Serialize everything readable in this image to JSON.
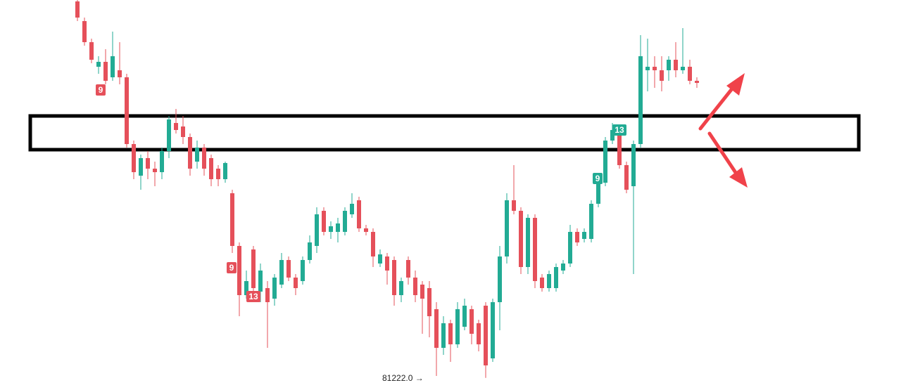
{
  "chart_data": {
    "type": "candlestick",
    "up_color": "#22ab94",
    "down_color": "#e5505a",
    "ylim": [
      81050,
      86600
    ],
    "open": [
      86580,
      86300,
      86000,
      85650,
      85720,
      85500,
      85600,
      85500,
      84550,
      84100,
      84350,
      84200,
      84150,
      84450,
      84850,
      84800,
      84650,
      84300,
      84500,
      84350,
      84200,
      84050,
      83850,
      83100,
      82400,
      83050,
      82450,
      82500,
      82350,
      82550,
      82900,
      82650,
      82600,
      82900,
      83100,
      83600,
      83300,
      83300,
      83300,
      83550,
      83750,
      83350,
      83300,
      82850,
      82950,
      82900,
      82400,
      82900,
      82650,
      82550,
      82500,
      82200,
      81650,
      82000,
      81700,
      81950,
      82200,
      82000,
      82250,
      81500,
      82300,
      82950,
      83750,
      83600,
      82800,
      83500,
      82650,
      82500,
      82500,
      82750,
      82850,
      83300,
      83200,
      83200,
      83700,
      84000,
      84600,
      84700,
      84250,
      83950,
      84550,
      85600,
      85650,
      85600,
      85600,
      85750,
      85600,
      85650,
      85450
    ],
    "high": [
      86600,
      86350,
      86050,
      85800,
      85900,
      86150,
      86000,
      85550,
      84600,
      84400,
      84450,
      84300,
      84500,
      84950,
      85050,
      84950,
      84700,
      84600,
      84550,
      84400,
      84250,
      84300,
      83900,
      83150,
      82750,
      83100,
      82850,
      82600,
      82700,
      83000,
      82950,
      82700,
      82950,
      83250,
      83650,
      83650,
      83450,
      83500,
      83650,
      83850,
      83800,
      83400,
      83350,
      83050,
      83000,
      82950,
      82650,
      82950,
      82750,
      82600,
      82600,
      82300,
      82100,
      82050,
      82300,
      82350,
      82250,
      82050,
      82300,
      82350,
      83100,
      83850,
      84250,
      83650,
      83550,
      83550,
      82700,
      82750,
      82850,
      82900,
      83400,
      83350,
      83350,
      83750,
      84100,
      84650,
      84850,
      84750,
      84300,
      84600,
      86100,
      86050,
      85800,
      85800,
      85800,
      86000,
      86200,
      85750,
      85500
    ],
    "low": [
      86300,
      85950,
      85700,
      85550,
      85400,
      85450,
      85400,
      84500,
      84050,
      83900,
      84050,
      83950,
      84050,
      84350,
      84700,
      84550,
      84100,
      84200,
      84100,
      83950,
      83950,
      84000,
      83000,
      82100,
      82350,
      82400,
      82300,
      81650,
      82250,
      82500,
      82600,
      82400,
      82550,
      82850,
      83000,
      83250,
      83200,
      83150,
      83250,
      83500,
      83300,
      83250,
      82800,
      82800,
      82550,
      82250,
      82300,
      82550,
      82300,
      81850,
      81800,
      81250,
      81550,
      81450,
      81650,
      81900,
      81700,
      81600,
      81222,
      81450,
      81900,
      82850,
      83550,
      82700,
      82700,
      82500,
      82450,
      82450,
      82450,
      82700,
      82800,
      83100,
      83150,
      83150,
      83650,
      83950,
      84550,
      84200,
      83850,
      82700,
      84500,
      85300,
      85350,
      85300,
      85450,
      85500,
      85550,
      85400,
      85350
    ],
    "close": [
      86350,
      86000,
      85750,
      85720,
      85450,
      85800,
      85500,
      84550,
      84150,
      84350,
      84200,
      84150,
      84450,
      84900,
      84750,
      84650,
      84200,
      84500,
      84200,
      84050,
      84050,
      84280,
      83100,
      82400,
      82600,
      82500,
      82750,
      82300,
      82650,
      82900,
      82650,
      82500,
      82900,
      83150,
      83550,
      83300,
      83380,
      83420,
      83600,
      83700,
      83350,
      83300,
      82950,
      82980,
      82750,
      82400,
      82600,
      82650,
      82400,
      82350,
      82100,
      81650,
      82000,
      81700,
      82200,
      82250,
      81850,
      81700,
      81400,
      82300,
      82950,
      83750,
      83600,
      82800,
      83500,
      82600,
      82500,
      82700,
      82800,
      82850,
      83300,
      83150,
      83300,
      83700,
      84000,
      84600,
      84750,
      84250,
      83900,
      84550,
      85800,
      85650,
      85600,
      85450,
      85750,
      85600,
      85650,
      85450,
      85420
    ],
    "markers": [
      {
        "text": "9",
        "color": "#e5505a"
      },
      {
        "text": "9",
        "color": "#e5505a"
      },
      {
        "text": "13",
        "color": "#e5505a"
      },
      {
        "text": "9",
        "color": "#22ab94"
      },
      {
        "text": "13",
        "color": "#22ab94"
      }
    ],
    "low_label": "81222.0 →"
  }
}
